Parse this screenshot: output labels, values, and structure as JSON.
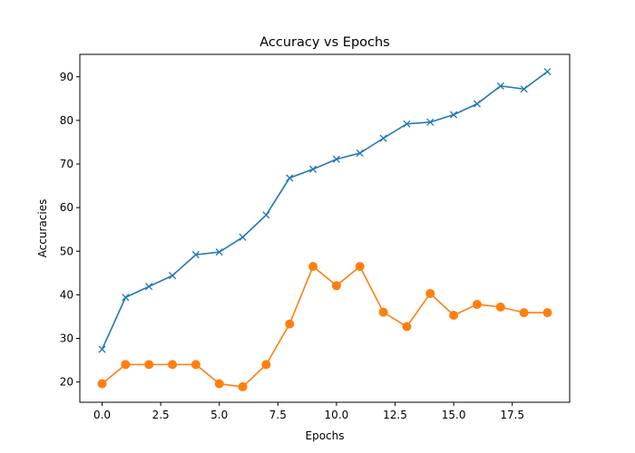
{
  "chart_data": {
    "type": "line",
    "title": "Accuracy vs Epochs",
    "xlabel": "Epochs",
    "ylabel": "Accuracies",
    "xlim": [
      -0.95,
      19.95
    ],
    "ylim": [
      15.35,
      95.15
    ],
    "xticks": [
      0.0,
      2.5,
      5.0,
      7.5,
      10.0,
      12.5,
      15.0,
      17.5
    ],
    "xtick_labels": [
      "0.0",
      "2.5",
      "5.0",
      "7.5",
      "10.0",
      "12.5",
      "15.0",
      "17.5"
    ],
    "yticks": [
      20,
      30,
      40,
      50,
      60,
      70,
      80,
      90
    ],
    "ytick_labels": [
      "20",
      "30",
      "40",
      "50",
      "60",
      "70",
      "80",
      "90"
    ],
    "grid": false,
    "x": [
      0,
      1,
      2,
      3,
      4,
      5,
      6,
      7,
      8,
      9,
      10,
      11,
      12,
      13,
      14,
      15,
      16,
      17,
      18,
      19
    ],
    "series": [
      {
        "color": "#1f77b4",
        "marker": "x",
        "values": [
          27.5,
          39.4,
          41.9,
          44.4,
          49.2,
          49.8,
          53.2,
          58.3,
          66.8,
          68.8,
          71.1,
          72.5,
          75.9,
          79.2,
          79.6,
          81.3,
          83.8,
          87.9,
          87.2,
          91.2
        ]
      },
      {
        "color": "#ff7f0e",
        "marker": "o",
        "values": [
          19.6,
          24.0,
          24.0,
          24.0,
          24.0,
          19.6,
          18.9,
          24.0,
          33.3,
          46.5,
          42.1,
          46.5,
          36.0,
          32.7,
          40.3,
          35.3,
          37.8,
          37.2,
          35.9,
          35.9
        ]
      }
    ]
  }
}
